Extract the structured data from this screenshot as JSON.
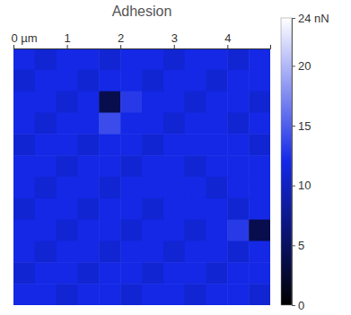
{
  "chart_data": {
    "type": "heatmap",
    "title": "Adhesion",
    "xlim": [
      0,
      4.8
    ],
    "ylim": [
      0,
      4.8
    ],
    "xticks": [
      {
        "value": 0,
        "label": "0 µm"
      },
      1,
      2,
      3,
      4
    ],
    "tick_labels": "x",
    "cells": [
      [
        12,
        11,
        12,
        12,
        11,
        12,
        12,
        11,
        12,
        12,
        11,
        12
      ],
      [
        11,
        12,
        12,
        11,
        12,
        12,
        11,
        12,
        12,
        11,
        12,
        12
      ],
      [
        12,
        12,
        11,
        12,
        4,
        13,
        12,
        12,
        11,
        12,
        12,
        11
      ],
      [
        12,
        11,
        12,
        12,
        14,
        12,
        12,
        11,
        12,
        12,
        11,
        12
      ],
      [
        11,
        12,
        12,
        11,
        12,
        12,
        11,
        12,
        12,
        12,
        12,
        11
      ],
      [
        12,
        12,
        11,
        12,
        12,
        11,
        12,
        12,
        11,
        12,
        12,
        12
      ],
      [
        12,
        11,
        12,
        12,
        11,
        12,
        12,
        12,
        12,
        11,
        12,
        12
      ],
      [
        11,
        12,
        12,
        11,
        12,
        12,
        11,
        12,
        12,
        12,
        11,
        12
      ],
      [
        12,
        12,
        11,
        12,
        12,
        11,
        12,
        12,
        11,
        12,
        13,
        4
      ],
      [
        12,
        11,
        12,
        12,
        11,
        12,
        12,
        11,
        12,
        12,
        11,
        12
      ],
      [
        11,
        12,
        12,
        11,
        12,
        12,
        11,
        12,
        12,
        11,
        12,
        12
      ],
      [
        12,
        12,
        11,
        12,
        12,
        11,
        12,
        12,
        11,
        12,
        12,
        11
      ]
    ],
    "colorbar": {
      "range": [
        0,
        24
      ],
      "ticks": [
        0,
        5,
        10,
        15,
        20,
        {
          "value": 24,
          "label": "24 nN"
        }
      ]
    }
  }
}
